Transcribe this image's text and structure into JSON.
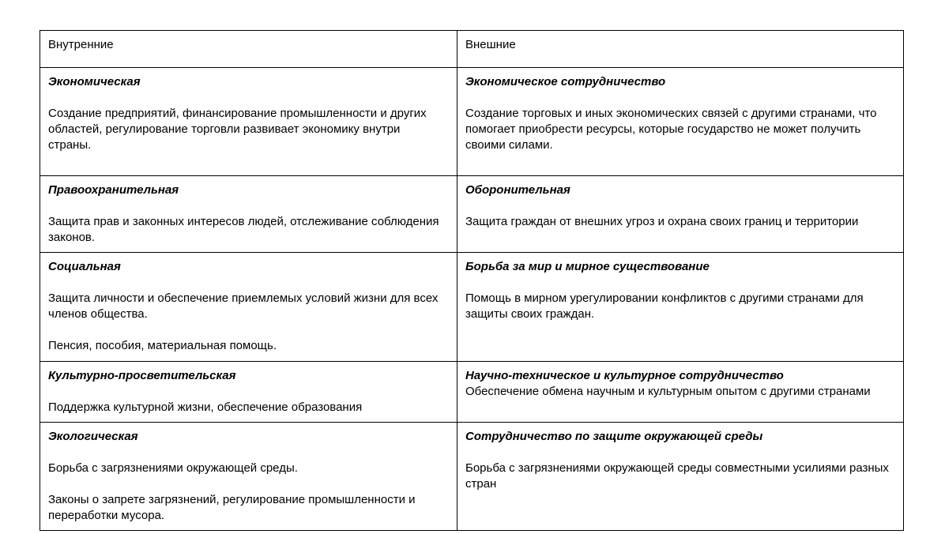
{
  "colors": {
    "border": "#000000",
    "text": "#000000",
    "background": "#ffffff"
  },
  "table": {
    "headers": [
      {
        "label": "Внутренние"
      },
      {
        "label": "Внешние"
      }
    ],
    "rows": [
      {
        "left": {
          "title": "Экономическая",
          "paragraphs": [
            "Создание предприятий, финансирование промышленности и других областей, регулирование торговли развивает экономику внутри страны."
          ]
        },
        "right": {
          "title": "Экономическое сотрудничество",
          "paragraphs": [
            "Создание торговых и иных экономических связей с другими странами, что помогает приобрести ресурсы, которые государство не может получить своими силами."
          ]
        }
      },
      {
        "left": {
          "title": "Правоохранительная",
          "paragraphs": [
            "Защита прав и законных интересов людей, отслеживание соблюдения законов."
          ]
        },
        "right": {
          "title": "Оборонительная",
          "paragraphs": [
            "Защита граждан от внешних угроз и охрана своих границ и территории"
          ]
        }
      },
      {
        "left": {
          "title": "Социальная",
          "paragraphs": [
            "Защита личности и обеспечение приемлемых условий жизни для всех членов общества.",
            "Пенсия, пособия, материальная помощь."
          ]
        },
        "right": {
          "title": "Борьба за мир и мирное существование",
          "paragraphs": [
            "Помощь в мирном урегулировании конфликтов с другими странами для защиты своих граждан."
          ]
        }
      },
      {
        "left": {
          "title": "Культурно-просветительская",
          "paragraphs": [
            "Поддержка культурной жизни, обеспечение образования"
          ]
        },
        "right": {
          "title": "Научно-техническое и культурное сотрудничество",
          "paragraphs": [
            "Обеспечение обмена научным и культурным опытом с другими странами"
          ]
        }
      },
      {
        "left": {
          "title": "Экологическая",
          "paragraphs": [
            "Борьба с загрязнениями окружающей среды.",
            "Законы о запрете загрязнений, регулирование промышленности и переработки мусора."
          ]
        },
        "right": {
          "title": "Сотрудничество по защите окружающей среды",
          "paragraphs": [
            "Борьба с загрязнениями окружающей среды совместными усилиями разных стран"
          ]
        }
      }
    ]
  }
}
